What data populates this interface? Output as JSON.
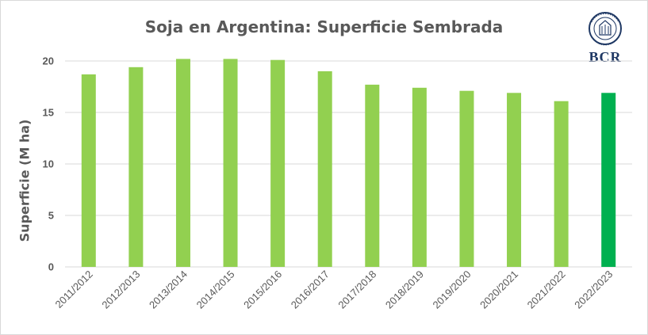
{
  "chart_data": {
    "type": "bar",
    "title": "Soja en Argentina: Superficie Sembrada",
    "xlabel": "",
    "ylabel": "Superficie (M ha)",
    "ylim": [
      0,
      20
    ],
    "yticks": [
      0,
      5,
      10,
      15,
      20
    ],
    "grid": true,
    "categories": [
      "2011/2012",
      "2012/2013",
      "2013/2014",
      "2014/2015",
      "2015/2016",
      "2016/2017",
      "2017/2018",
      "2018/2019",
      "2019/2020",
      "2020/2021",
      "2021/2022",
      "2022/2023"
    ],
    "values": [
      18.7,
      19.4,
      20.2,
      20.2,
      20.1,
      19.0,
      17.7,
      17.4,
      17.1,
      16.9,
      16.1,
      16.9
    ],
    "bar_color": "#92d050",
    "highlight_color": "#00b050",
    "highlight_index": 11
  },
  "logo": {
    "text": "BCR",
    "color": "#1f3864"
  }
}
